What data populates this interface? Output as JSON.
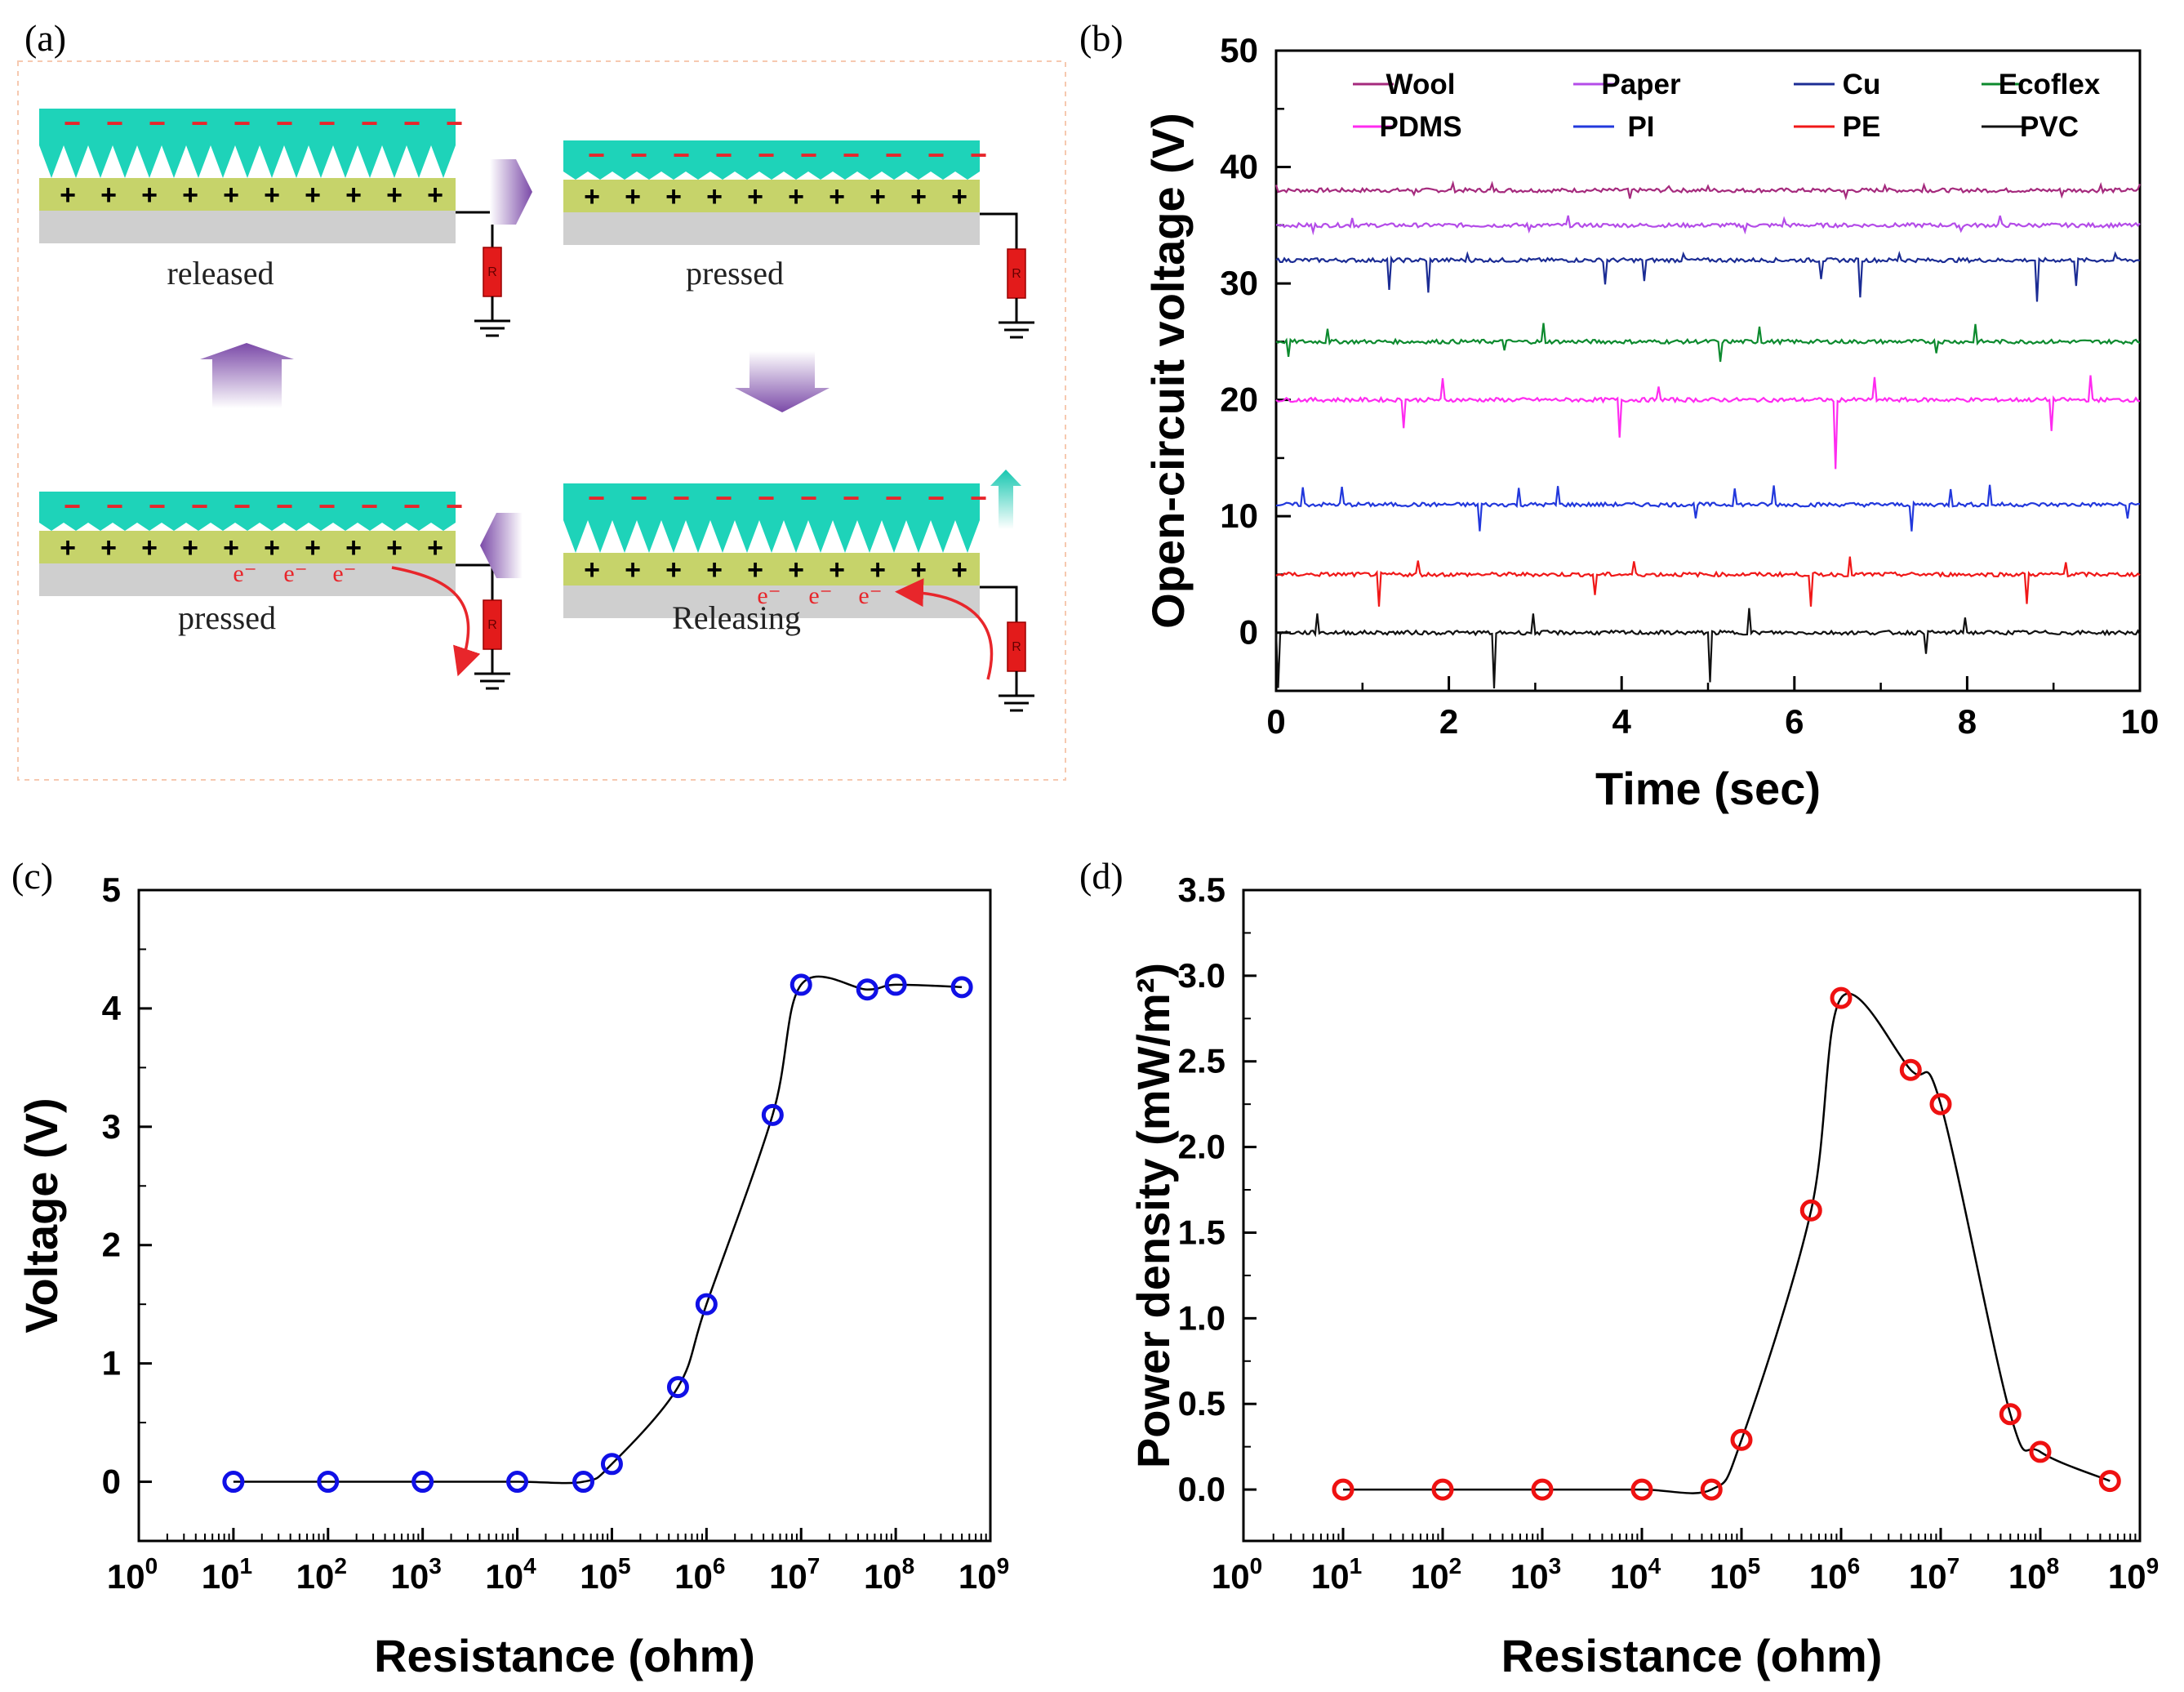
{
  "panel_labels": {
    "a": "(a)",
    "b": "(b)",
    "c": "(c)",
    "d": "(d)"
  },
  "schematic": {
    "states": [
      "released",
      "pressed",
      "pressed",
      "Releasing"
    ],
    "charge_negative": "−",
    "charge_positive": "+",
    "electron": "e⁻",
    "resistor": "R",
    "colors": {
      "top_layer": "#1ed3b9",
      "bottom_layer": "#c6d36a",
      "electrode": "#cfcfcf",
      "resistor": "#e31b1b",
      "arrow": "#8b58b4",
      "negative": "#e8262b"
    }
  },
  "chart_data": [
    {
      "panel": "b",
      "type": "line",
      "xlabel": "Time (sec)",
      "ylabel": "Open-circuit voltage (V)",
      "xlim": [
        0,
        10
      ],
      "ylim": [
        -5,
        50
      ],
      "xticks": [
        0,
        2,
        4,
        6,
        8,
        10
      ],
      "yticks": [
        0,
        10,
        20,
        30,
        40,
        50
      ],
      "legend_location": "top",
      "series": [
        {
          "name": "Wool",
          "color": "#a52a7d",
          "baseline": 38,
          "spike_up": 0.5,
          "spike_down": 0.6
        },
        {
          "name": "Paper",
          "color": "#b44ce8",
          "baseline": 35,
          "spike_up": 0.7,
          "spike_down": 0.8
        },
        {
          "name": "Cu",
          "color": "#1b2c94",
          "baseline": 32,
          "spike_up": 0.7,
          "spike_down": 3.0
        },
        {
          "name": "Ecoflex",
          "color": "#0c8a2e",
          "baseline": 25,
          "spike_up": 1.5,
          "spike_down": 1.5
        },
        {
          "name": "PDMS",
          "color": "#ff2bf0",
          "baseline": 20,
          "spike_up": 1.8,
          "spike_down": 6.0
        },
        {
          "name": "PI",
          "color": "#2238dc",
          "baseline": 11,
          "spike_up": 1.6,
          "spike_down": 2.8
        },
        {
          "name": "PE",
          "color": "#f01818",
          "baseline": 5,
          "spike_up": 1.3,
          "spike_down": 2.5
        },
        {
          "name": "PVC",
          "color": "#111111",
          "baseline": 0,
          "spike_up": 2.0,
          "spike_down": 4.0
        }
      ]
    },
    {
      "panel": "c",
      "type": "scatter",
      "xlabel": "Resistance (ohm)",
      "ylabel": "Voltage (V)",
      "xscale": "log",
      "xlim_exp": [
        0,
        9
      ],
      "ylim": [
        -0.5,
        5
      ],
      "yticks": [
        0,
        1,
        2,
        3,
        4,
        5
      ],
      "marker_color": "#1010e6",
      "x": [
        10,
        100,
        1000,
        10000,
        50000,
        100000,
        500000,
        1000000,
        5000000,
        10000000,
        50000000,
        100000000,
        500000000
      ],
      "y": [
        0,
        0,
        0,
        0,
        0,
        0.15,
        0.8,
        1.5,
        3.1,
        4.2,
        4.16,
        4.2,
        4.18
      ],
      "fit": {
        "color": "#000000"
      }
    },
    {
      "panel": "d",
      "type": "scatter",
      "xlabel": "Resistance (ohm)",
      "ylabel": "Power density (mW/m²)",
      "xscale": "log",
      "xlim_exp": [
        0,
        9
      ],
      "ylim": [
        -0.3,
        3.5
      ],
      "yticks": [
        "0.0",
        "0.5",
        "1.0",
        "1.5",
        "2.0",
        "2.5",
        "3.0",
        "3.5"
      ],
      "marker_color": "#ee1111",
      "x": [
        10,
        100,
        1000,
        10000,
        50000,
        100000,
        500000,
        1000000,
        5000000,
        10000000,
        50000000,
        100000000,
        500000000
      ],
      "y": [
        0,
        0,
        0,
        0,
        0,
        0.29,
        1.63,
        2.87,
        2.45,
        2.25,
        0.44,
        0.22,
        0.05
      ],
      "fit": {
        "color": "#000000"
      }
    }
  ]
}
